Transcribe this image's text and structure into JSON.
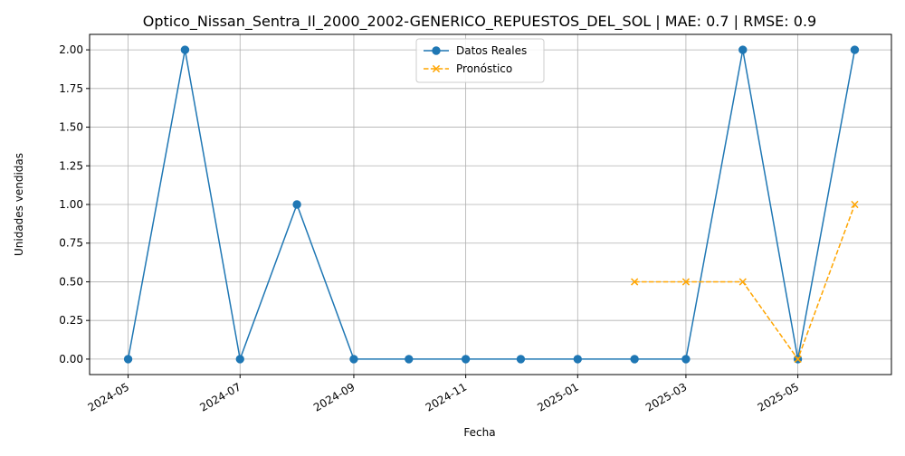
{
  "chart_data": {
    "type": "line",
    "title": "Optico_Nissan_Sentra_Il_2000_2002-GENERICO_REPUESTOS_DEL_SOL | MAE: 0.7 | RMSE: 0.9",
    "xlabel": "Fecha",
    "ylabel": "Unidades vendidas",
    "x_ticks": [
      "2024-05",
      "2024-07",
      "2024-09",
      "2024-11",
      "2025-01",
      "2025-03",
      "2025-05"
    ],
    "y_ticks": [
      "0.00",
      "0.25",
      "0.50",
      "0.75",
      "1.00",
      "1.25",
      "1.50",
      "1.75",
      "2.00"
    ],
    "ylim": [
      -0.1,
      2.1
    ],
    "xlim": [
      "2024-04-10",
      "2025-06-21"
    ],
    "grid": true,
    "legend_position": "top-center",
    "series": [
      {
        "name": "Datos Reales",
        "color": "#1f77b4",
        "style": "solid",
        "marker": "circle",
        "points": [
          {
            "x": "2024-05-01",
            "y": 0
          },
          {
            "x": "2024-06-01",
            "y": 2
          },
          {
            "x": "2024-07-01",
            "y": 0
          },
          {
            "x": "2024-08-01",
            "y": 1
          },
          {
            "x": "2024-09-01",
            "y": 0
          },
          {
            "x": "2024-10-01",
            "y": 0
          },
          {
            "x": "2024-11-01",
            "y": 0
          },
          {
            "x": "2024-12-01",
            "y": 0
          },
          {
            "x": "2025-01-01",
            "y": 0
          },
          {
            "x": "2025-02-01",
            "y": 0
          },
          {
            "x": "2025-03-01",
            "y": 0
          },
          {
            "x": "2025-04-01",
            "y": 2
          },
          {
            "x": "2025-05-01",
            "y": 0
          },
          {
            "x": "2025-06-01",
            "y": 2
          }
        ]
      },
      {
        "name": "Pronóstico",
        "color": "#ffa500",
        "style": "dashed",
        "marker": "x",
        "points": [
          {
            "x": "2025-02-01",
            "y": 0.5
          },
          {
            "x": "2025-03-01",
            "y": 0.5
          },
          {
            "x": "2025-04-01",
            "y": 0.5
          },
          {
            "x": "2025-05-01",
            "y": 0
          },
          {
            "x": "2025-06-01",
            "y": 1
          }
        ]
      }
    ]
  }
}
